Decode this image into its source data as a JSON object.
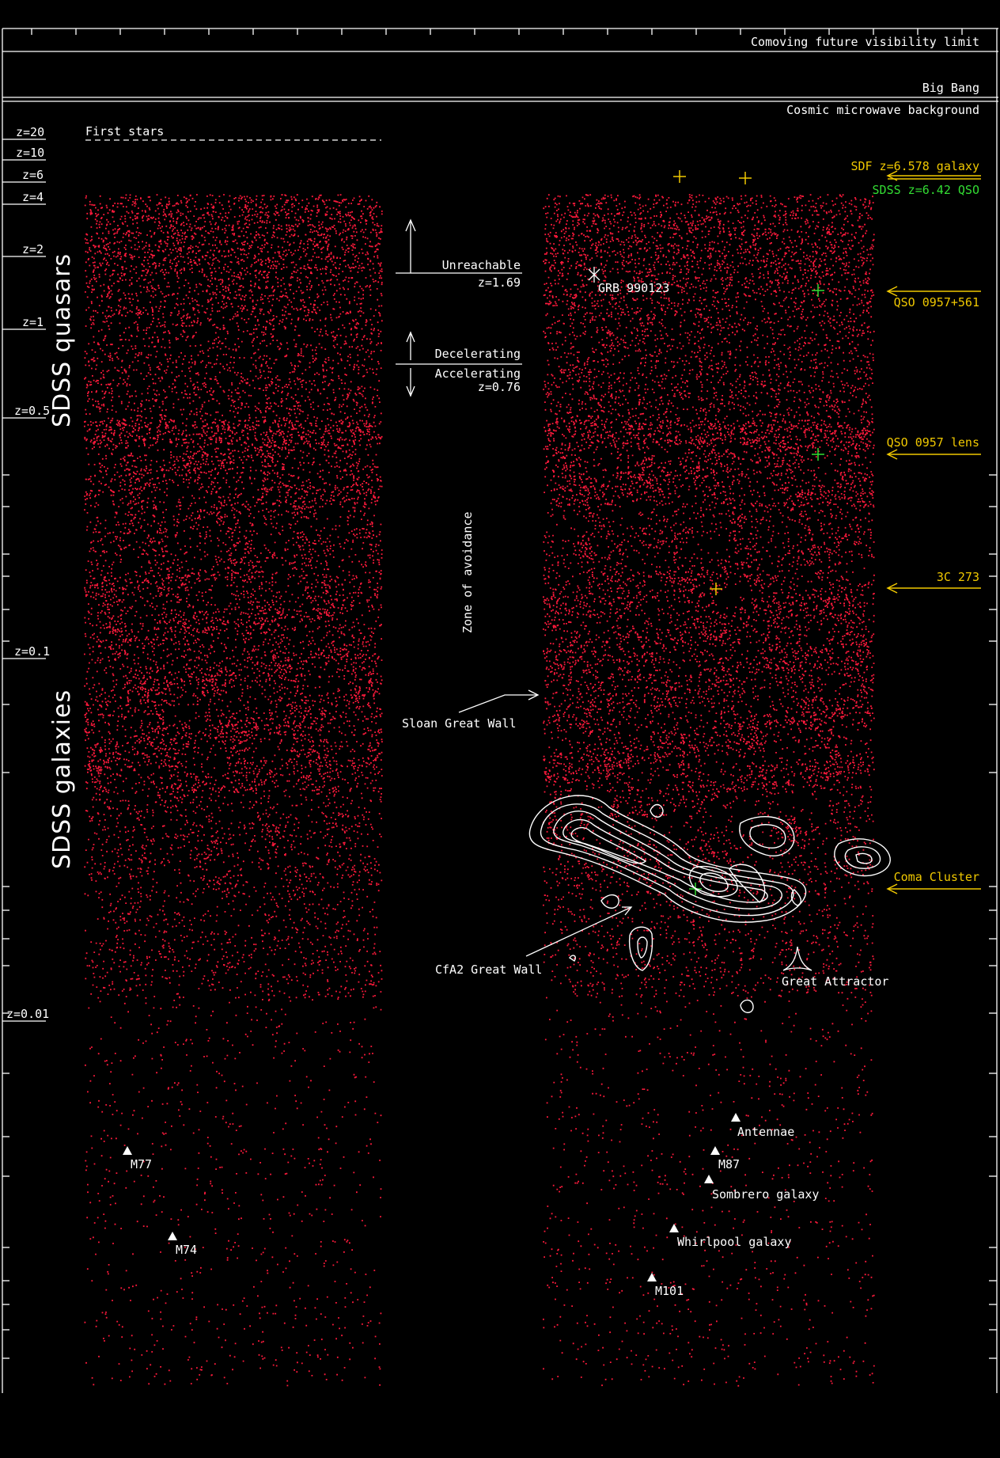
{
  "horizons": {
    "future_visibility": "Comoving future visibility limit",
    "big_bang": "Big Bang",
    "cmb": "Cosmic microwave background",
    "first_stars": "First stars"
  },
  "redshift_labels": [
    "z=20",
    "z=10",
    "z=6",
    "z=4",
    "z=2",
    "z=1",
    "z=0.5",
    "z=0.1",
    "z=0.01"
  ],
  "surveys": {
    "quasars": "SDSS quasars",
    "galaxies": "SDSS galaxies"
  },
  "annotations": {
    "unreachable": "Unreachable",
    "unreachable_z": "z=1.69",
    "decelerating": "Decelerating",
    "accelerating": "Accelerating",
    "accel_z": "z=0.76",
    "zone_of_avoidance": "Zone of avoidance",
    "sloan_great_wall": "Sloan Great Wall",
    "cfa2_great_wall": "CfA2 Great Wall",
    "great_attractor": "Great Attractor",
    "grb": "GRB 990123"
  },
  "right_labels": {
    "sdf_galaxy": "SDF z=6.578 galaxy",
    "sdss_qso": "SDSS z=6.42 QSO",
    "qso_0957": "QSO 0957+561",
    "qso_lens": "QSO 0957 lens",
    "3c273": "3C 273",
    "coma": "Coma Cluster"
  },
  "nearby_galaxies": [
    "M77",
    "M74",
    "Antennae",
    "M87",
    "Sombrero galaxy",
    "Whirlpool galaxy",
    "M101"
  ],
  "colors": {
    "background": "#000000",
    "galaxy_dots": "#ff1a3c",
    "labels": "#ffffff",
    "highlight_yellow": "#f0c800",
    "highlight_green": "#33dd33"
  }
}
